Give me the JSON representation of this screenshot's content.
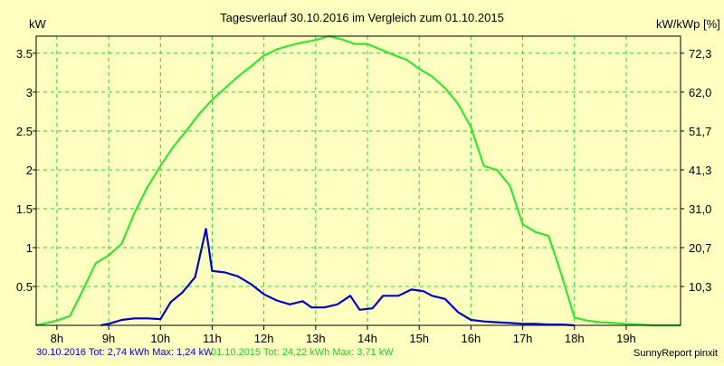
{
  "chart_data": {
    "type": "line",
    "title": "Tagesverlauf 30.10.2016 im Vergleich zum 01.10.2015",
    "ylabel_left": "kW",
    "ylabel_right": "kW/kWp [%]",
    "x_unit": "hour",
    "xlim": [
      7.6,
      20.05
    ],
    "ylim": [
      0,
      3.72
    ],
    "x_ticks": [
      8,
      9,
      10,
      11,
      12,
      13,
      14,
      15,
      16,
      17,
      18,
      19
    ],
    "x_tick_labels": [
      "8h",
      "9h",
      "10h",
      "11h",
      "12h",
      "13h",
      "14h",
      "15h",
      "16h",
      "17h",
      "18h",
      "19h"
    ],
    "y_ticks": [
      0.5,
      1,
      1.5,
      2,
      2.5,
      3,
      3.5
    ],
    "y_tick_labels": [
      "0.5",
      "1",
      "1.5",
      "2",
      "2.5",
      "3",
      "3.5"
    ],
    "y_ticks_right_labels": [
      "10,3",
      "20,7",
      "31,0",
      "41,3",
      "51,7",
      "62,0",
      "72,3"
    ],
    "grid": true,
    "series": [
      {
        "name": "30.10.2016",
        "color": "#0000cc",
        "x": [
          8.85,
          9.0,
          9.25,
          9.5,
          9.75,
          10.0,
          10.2,
          10.42,
          10.67,
          10.88,
          11.0,
          11.25,
          11.5,
          11.75,
          12.0,
          12.25,
          12.5,
          12.75,
          12.92,
          13.17,
          13.42,
          13.67,
          13.85,
          14.1,
          14.3,
          14.6,
          14.85,
          15.08,
          15.25,
          15.5,
          15.75,
          16.0,
          16.25,
          16.5,
          16.75,
          17.0,
          17.25,
          17.5,
          17.75,
          18.0
        ],
        "y": [
          0.0,
          0.02,
          0.07,
          0.09,
          0.09,
          0.08,
          0.3,
          0.42,
          0.62,
          1.24,
          0.7,
          0.68,
          0.63,
          0.53,
          0.4,
          0.32,
          0.27,
          0.31,
          0.23,
          0.23,
          0.27,
          0.38,
          0.2,
          0.22,
          0.38,
          0.38,
          0.46,
          0.44,
          0.38,
          0.34,
          0.17,
          0.07,
          0.05,
          0.04,
          0.03,
          0.02,
          0.02,
          0.01,
          0.01,
          0.0
        ]
      },
      {
        "name": "01.10.2015",
        "color": "#33e633",
        "x": [
          7.6,
          8.0,
          8.25,
          8.5,
          8.75,
          9.0,
          9.25,
          9.5,
          9.75,
          10.0,
          10.25,
          10.5,
          10.75,
          11.0,
          11.25,
          11.5,
          11.75,
          12.0,
          12.25,
          12.5,
          12.75,
          13.0,
          13.25,
          13.5,
          13.75,
          14.0,
          14.25,
          14.5,
          14.75,
          15.0,
          15.25,
          15.5,
          15.75,
          16.0,
          16.25,
          16.5,
          16.75,
          17.0,
          17.25,
          17.5,
          17.75,
          18.0,
          18.25,
          18.5,
          18.75,
          19.0,
          19.25,
          19.5,
          19.75,
          20.05
        ],
        "y": [
          0.0,
          0.06,
          0.12,
          0.45,
          0.8,
          0.9,
          1.05,
          1.45,
          1.78,
          2.05,
          2.3,
          2.5,
          2.72,
          2.9,
          3.05,
          3.2,
          3.33,
          3.47,
          3.55,
          3.6,
          3.64,
          3.67,
          3.72,
          3.68,
          3.62,
          3.62,
          3.55,
          3.48,
          3.42,
          3.3,
          3.2,
          3.05,
          2.85,
          2.55,
          2.05,
          2.0,
          1.8,
          1.3,
          1.2,
          1.15,
          0.65,
          0.1,
          0.06,
          0.04,
          0.03,
          0.02,
          0.01,
          0.0,
          0.0,
          0.0
        ]
      }
    ]
  },
  "footer": {
    "series1_label": "30.10.2016 Tot: 2,74 kWh Max: 1,24 kW",
    "series2_label": "01.10.2015 Tot: 24,22 kWh Max: 3,71 kW",
    "credit": "SunnyReport pinxit"
  },
  "colors": {
    "background": "#ffffc0",
    "axis": "#000000",
    "grid": "#33cc33",
    "series1": "#0000cc",
    "series2": "#33e633"
  }
}
